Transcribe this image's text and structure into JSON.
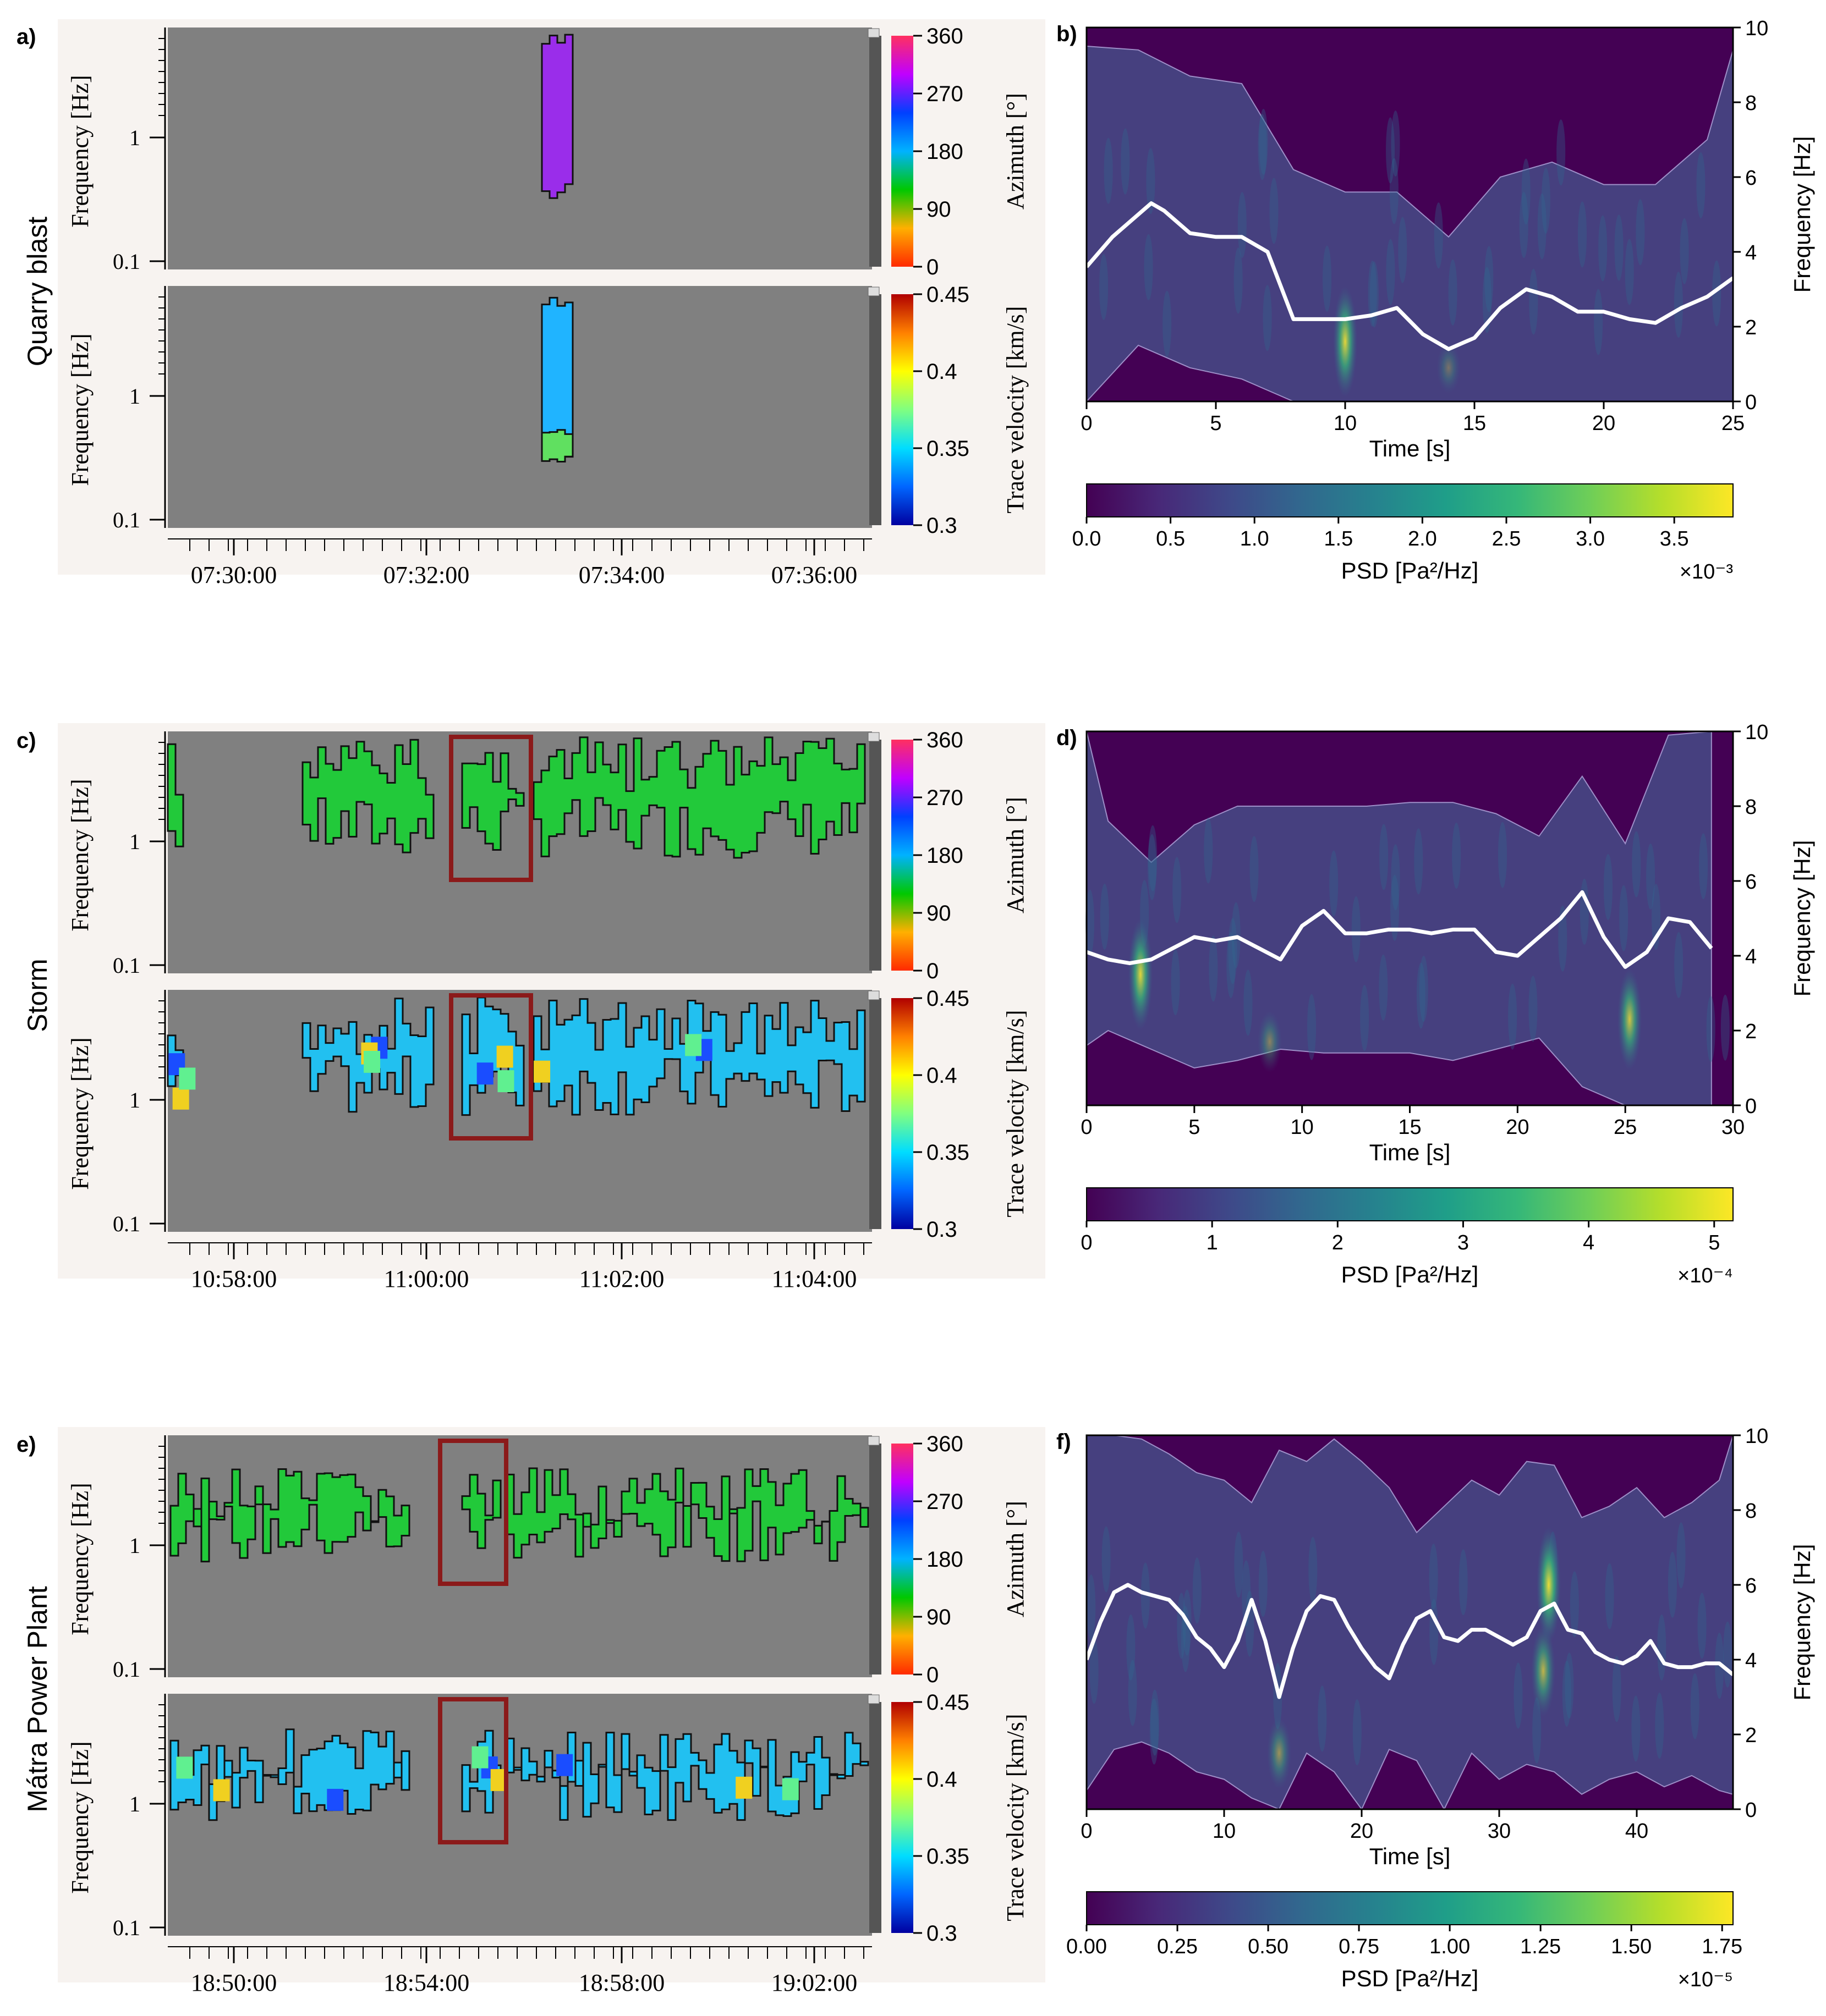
{
  "colors": {
    "gray_bg": "#808080",
    "panel_bg": "#f7f3f0",
    "psd_bg": "#440154",
    "psd_band": "#46407f",
    "red_box": "#8b1a1a"
  },
  "rows": [
    {
      "label": "Quarry blast",
      "left_panel_letter": "a)",
      "right_panel_letter": "b)",
      "time_ticks": [
        "07:30:00",
        "07:32:00",
        "07:34:00",
        "07:36:00"
      ],
      "has_red_box": false
    },
    {
      "label": "Storm",
      "left_panel_letter": "c)",
      "right_panel_letter": "d)",
      "time_ticks": [
        "10:58:00",
        "11:00:00",
        "11:02:00",
        "11:04:00"
      ],
      "has_red_box": true
    },
    {
      "label": "Mátra Power Plant",
      "left_panel_letter": "e)",
      "right_panel_letter": "f)",
      "time_ticks": [
        "18:50:00",
        "18:54:00",
        "18:58:00",
        "19:02:00"
      ],
      "has_red_box": true
    }
  ],
  "fk_common": {
    "ylabel": "Frequency [Hz]",
    "yticks": [
      "1",
      "0.1"
    ],
    "azimuth_label": "Azimuth [°]",
    "azimuth_ticks": [
      "360",
      "270",
      "180",
      "90",
      "0"
    ],
    "velocity_label": "Trace velocity [km/s]",
    "velocity_ticks": [
      "0.45",
      "0.4",
      "0.35",
      "0.3"
    ]
  },
  "chart_data": [
    {
      "type": "heatmap",
      "panel": "b",
      "xlabel": "Time [s]",
      "ylabel": "Frequency [Hz]",
      "xlim": [
        0,
        25
      ],
      "ylim": [
        0,
        10
      ],
      "xticks": [
        0,
        5,
        10,
        15,
        20,
        25
      ],
      "yticks": [
        0,
        2,
        4,
        6,
        8,
        10
      ],
      "colorbar_label": "PSD [Pa²/Hz]",
      "colorbar_ticks": [
        "0.0",
        "0.5",
        "1.0",
        "1.5",
        "2.0",
        "2.5",
        "3.0",
        "3.5"
      ],
      "colorbar_multiplier": "×10⁻³",
      "mean_frequency": {
        "x": [
          0,
          1,
          2,
          2.5,
          3,
          4,
          5,
          6,
          7,
          8,
          9,
          10,
          11,
          12,
          13,
          14,
          15,
          16,
          17,
          18,
          19,
          20,
          21,
          22,
          23,
          24,
          25
        ],
        "y": [
          3.6,
          4.4,
          5.0,
          5.3,
          5.1,
          4.5,
          4.4,
          4.4,
          4.0,
          2.2,
          2.2,
          2.2,
          2.3,
          2.5,
          1.8,
          1.4,
          1.7,
          2.5,
          3.0,
          2.8,
          2.4,
          2.4,
          2.2,
          2.1,
          2.5,
          2.8,
          3.3
        ]
      },
      "upper_band": {
        "x": [
          0,
          2,
          4,
          6,
          8,
          10,
          12,
          14,
          16,
          18,
          20,
          22,
          24,
          25
        ],
        "y": [
          9.5,
          9.4,
          8.7,
          8.5,
          6.2,
          5.6,
          5.6,
          4.4,
          6.0,
          6.4,
          5.8,
          5.8,
          7.0,
          9.4
        ]
      },
      "lower_band": {
        "x": [
          0,
          2,
          4,
          6,
          8,
          10,
          12,
          14,
          16,
          18,
          20,
          22,
          24,
          25
        ],
        "y": [
          0,
          1.5,
          0.9,
          0.6,
          0,
          0,
          0,
          0,
          0,
          0,
          0,
          0,
          0,
          0
        ]
      },
      "hotspots": [
        {
          "x": 10.0,
          "y": 1.6,
          "intensity": 0.9
        },
        {
          "x": 14.0,
          "y": 0.9,
          "intensity": 0.3
        }
      ]
    },
    {
      "type": "heatmap",
      "panel": "d",
      "xlabel": "Time [s]",
      "ylabel": "Frequency [Hz]",
      "xlim": [
        0,
        30
      ],
      "ylim": [
        0,
        10
      ],
      "xticks": [
        0,
        5,
        10,
        15,
        20,
        25,
        30
      ],
      "yticks": [
        0,
        2,
        4,
        6,
        8,
        10
      ],
      "colorbar_label": "PSD [Pa²/Hz]",
      "colorbar_ticks": [
        "0",
        "1",
        "2",
        "3",
        "4",
        "5"
      ],
      "colorbar_multiplier": "×10⁻⁴",
      "mean_frequency": {
        "x": [
          0,
          1,
          2,
          3,
          4,
          5,
          6,
          7,
          8,
          9,
          10,
          11,
          12,
          13,
          14,
          15,
          16,
          17,
          18,
          19,
          20,
          21,
          22,
          23,
          24,
          25,
          26,
          27,
          28,
          29
        ],
        "y": [
          4.1,
          3.9,
          3.8,
          3.9,
          4.2,
          4.5,
          4.4,
          4.5,
          4.2,
          3.9,
          4.8,
          5.2,
          4.6,
          4.6,
          4.7,
          4.7,
          4.6,
          4.7,
          4.7,
          4.1,
          4.0,
          4.5,
          5.0,
          5.7,
          4.5,
          3.7,
          4.1,
          5.0,
          4.9,
          4.2
        ]
      },
      "upper_band": {
        "x": [
          0,
          1,
          3,
          5,
          7,
          9,
          11,
          13,
          15,
          17,
          19,
          21,
          23,
          25,
          27,
          29
        ],
        "y": [
          10,
          7.6,
          6.5,
          7.5,
          8.0,
          8.0,
          8.0,
          8.0,
          8.1,
          8.1,
          7.8,
          7.2,
          8.8,
          7.0,
          9.9,
          10
        ]
      },
      "lower_band": {
        "x": [
          0,
          1,
          3,
          5,
          7,
          9,
          11,
          13,
          15,
          17,
          19,
          21,
          23,
          25,
          27,
          29
        ],
        "y": [
          1.6,
          2.0,
          1.5,
          1.0,
          1.2,
          1.5,
          1.4,
          1.4,
          1.4,
          1.2,
          1.5,
          1.8,
          0.5,
          0,
          0,
          0
        ]
      },
      "hotspots": [
        {
          "x": 2.5,
          "y": 3.5,
          "intensity": 0.9
        },
        {
          "x": 25.2,
          "y": 2.3,
          "intensity": 0.8
        },
        {
          "x": 8.5,
          "y": 1.7,
          "intensity": 0.4
        }
      ]
    },
    {
      "type": "heatmap",
      "panel": "f",
      "xlabel": "Time [s]",
      "ylabel": "Frequency [Hz]",
      "xlim": [
        0,
        47
      ],
      "ylim": [
        0,
        10
      ],
      "xticks": [
        0,
        10,
        20,
        30,
        40
      ],
      "yticks": [
        0,
        2,
        4,
        6,
        8,
        10
      ],
      "colorbar_label": "PSD [Pa²/Hz]",
      "colorbar_ticks": [
        "0.00",
        "0.25",
        "0.50",
        "0.75",
        "1.00",
        "1.25",
        "1.50",
        "1.75"
      ],
      "colorbar_multiplier": "×10⁻⁵",
      "mean_frequency": {
        "x": [
          0,
          1,
          2,
          3,
          4,
          5,
          6,
          7,
          8,
          9,
          10,
          11,
          12,
          13,
          14,
          15,
          16,
          17,
          18,
          19,
          20,
          21,
          22,
          23,
          24,
          25,
          26,
          27,
          28,
          29,
          30,
          31,
          32,
          33,
          34,
          35,
          36,
          37,
          38,
          39,
          40,
          41,
          42,
          43,
          44,
          45,
          46,
          47
        ],
        "y": [
          4.0,
          5.0,
          5.8,
          6.0,
          5.8,
          5.7,
          5.6,
          5.2,
          4.6,
          4.3,
          3.8,
          4.5,
          5.6,
          4.5,
          3.0,
          4.3,
          5.3,
          5.7,
          5.6,
          4.9,
          4.3,
          3.8,
          3.5,
          4.4,
          5.1,
          5.3,
          4.6,
          4.5,
          4.8,
          4.8,
          4.6,
          4.4,
          4.6,
          5.3,
          5.5,
          4.8,
          4.7,
          4.2,
          4.0,
          3.9,
          4.1,
          4.5,
          3.9,
          3.8,
          3.8,
          3.9,
          3.9,
          3.6
        ]
      },
      "upper_band": {
        "x": [
          0,
          2,
          4,
          6,
          8,
          10,
          12,
          14,
          16,
          18,
          20,
          22,
          24,
          26,
          28,
          30,
          32,
          34,
          36,
          38,
          40,
          42,
          44,
          46,
          47
        ],
        "y": [
          10,
          10,
          9.9,
          9.5,
          9.0,
          8.8,
          8.2,
          9.6,
          9.3,
          9.9,
          9.3,
          8.6,
          7.4,
          8.1,
          8.8,
          8.4,
          9.3,
          9.2,
          7.8,
          8.1,
          8.6,
          7.8,
          8.2,
          8.8,
          10
        ]
      },
      "lower_band": {
        "x": [
          0,
          2,
          4,
          6,
          8,
          10,
          12,
          14,
          16,
          18,
          20,
          22,
          24,
          26,
          28,
          30,
          32,
          34,
          36,
          38,
          40,
          42,
          44,
          46,
          47
        ],
        "y": [
          0.5,
          1.6,
          1.8,
          1.5,
          1.0,
          0.8,
          0.3,
          0,
          1.5,
          1.0,
          0,
          1.6,
          1.3,
          0,
          1.5,
          0.8,
          1.2,
          1.0,
          0.4,
          0.8,
          1.0,
          0.6,
          0.9,
          0.5,
          0.4
        ]
      },
      "hotspots": [
        {
          "x": 33.6,
          "y": 6.0,
          "intensity": 0.95
        },
        {
          "x": 33.2,
          "y": 3.7,
          "intensity": 0.7
        },
        {
          "x": 14.0,
          "y": 1.5,
          "intensity": 0.5
        }
      ]
    }
  ]
}
